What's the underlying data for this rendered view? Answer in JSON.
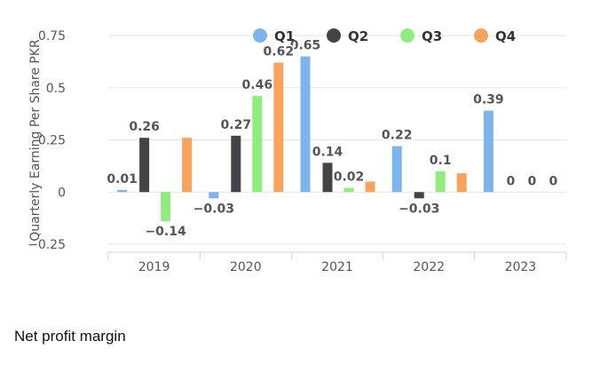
{
  "caption": "Net profit margin",
  "colors": {
    "Q1": "#7cb5ec",
    "Q2": "#434348",
    "Q3": "#90ed7d",
    "Q4": "#f7a35c",
    "grid": "#e6e6e6",
    "axis": "#ccd6eb",
    "text": "#555555"
  },
  "chart_data": {
    "type": "bar",
    "ylabel": "Quarterly Earning Per Share PKR",
    "ylim": [
      -0.25,
      0.75
    ],
    "yticks": [
      -0.25,
      0,
      0.25,
      0.5,
      0.75
    ],
    "ytick_labels": [
      "−0.25",
      "0",
      "0.25",
      "0.5",
      "0.75"
    ],
    "categories": [
      "2019",
      "2020",
      "2021",
      "2022",
      "2023"
    ],
    "grid": true,
    "legend": "top-right",
    "series": [
      {
        "name": "Q1",
        "values": [
          0.01,
          -0.03,
          0.65,
          0.22,
          0.39
        ],
        "labels": [
          "0.01",
          "−0.03",
          "0.65",
          "0.22",
          "0.39"
        ]
      },
      {
        "name": "Q2",
        "values": [
          0.26,
          0.27,
          0.14,
          -0.03,
          0
        ],
        "labels": [
          "0.26",
          "0.27",
          "0.14",
          "−0.03",
          "0"
        ]
      },
      {
        "name": "Q3",
        "values": [
          -0.14,
          0.46,
          0.02,
          0.1,
          0
        ],
        "labels": [
          "−0.14",
          "0.46",
          "0.02",
          "0.1",
          "0"
        ]
      },
      {
        "name": "Q4",
        "values": [
          0.26,
          0.62,
          0.05,
          0.09,
          0
        ],
        "labels": [
          "",
          "0.62",
          "",
          "",
          "0"
        ]
      }
    ]
  }
}
